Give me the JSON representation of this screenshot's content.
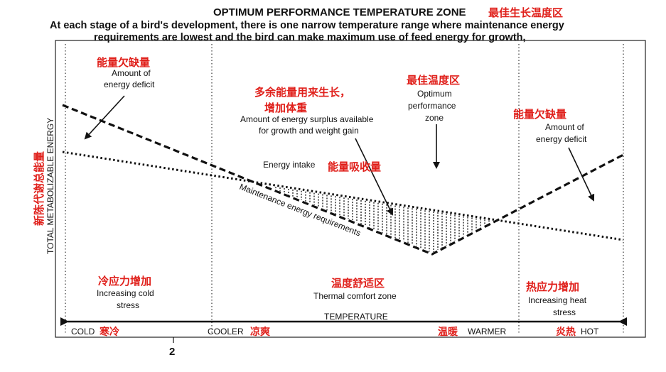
{
  "header": {
    "title": "OPTIMUM PERFORMANCE TEMPERATURE ZONE",
    "title_cn": "最佳生长温度区",
    "line1": "At each stage of a bird's development, there is one narrow temperature range where maintenance energy",
    "line2": "requirements are lowest and the bird can make maximum use of feed energy for growth,"
  },
  "y_axis": {
    "label": "TOTAL METABOLIZABLE ENERGY",
    "label_cn": "新陈代谢总能量"
  },
  "x_axis": {
    "label": "TEMPERATURE",
    "cold": "COLD",
    "cold_cn": "寒冷",
    "cooler": "COOLER",
    "cooler_cn": "凉爽",
    "warmer_cn": "温暖",
    "warmer": "WARMER",
    "hot_cn": "炎热",
    "hot": "HOT"
  },
  "annotations": {
    "left_deficit_cn": "能量欠缺量",
    "left_deficit_1": "Amount of",
    "left_deficit_2": "energy deficit",
    "surplus_cn_1": "多余能量用来生长，",
    "surplus_cn_2": "增加体重",
    "surplus_1": "Amount of energy surplus available",
    "surplus_2": "for growth and weight gain",
    "optimum_cn": "最佳温度区",
    "optimum_1": "Optimum",
    "optimum_2": "performance",
    "optimum_3": "zone",
    "right_deficit_cn": "能量欠缺量",
    "right_deficit_1": "Amount of",
    "right_deficit_2": "energy deficit",
    "intake": "Energy intake",
    "intake_cn": "能量吸收量",
    "maintenance": "Maintenance energy requirements"
  },
  "zones": {
    "cold_cn": "冷应力增加",
    "cold_1": "Increasing cold",
    "cold_2": "stress",
    "comfort_cn": "温度舒适区",
    "comfort": "Thermal comfort zone",
    "heat_cn": "热应力增加",
    "heat_1": "Increasing heat",
    "heat_2": "stress"
  },
  "page_number": "2"
}
